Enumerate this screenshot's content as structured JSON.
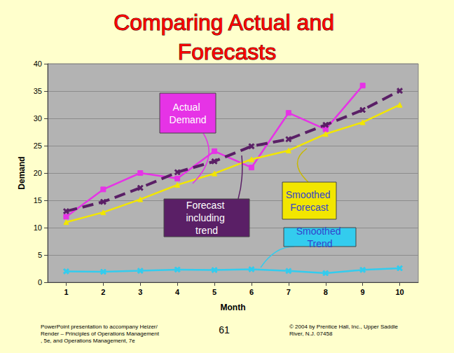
{
  "chart_data": {
    "type": "line",
    "title": "Comparing Actual and Forecasts",
    "x_label": "Month",
    "y_label": "Demand",
    "categories": [
      "1",
      "2",
      "3",
      "4",
      "5",
      "6",
      "7",
      "8",
      "9",
      "10"
    ],
    "series": [
      {
        "name": "Actual Demand",
        "color": "#e633e6",
        "marker": "square",
        "line_style": "solid",
        "values": [
          12,
          17,
          20,
          19,
          24,
          21,
          31,
          28,
          36,
          null
        ]
      },
      {
        "name": "Forecast including trend",
        "color": "#5a1f66",
        "marker": "x",
        "line_style": "dashed",
        "values": [
          13.0,
          14.72,
          17.28,
          20.14,
          22.14,
          24.89,
          26.18,
          28.81,
          31.54,
          35.05
        ]
      },
      {
        "name": "Smoothed Forecast",
        "color": "#f2e600",
        "marker": "triangle",
        "line_style": "solid",
        "values": [
          11.0,
          12.8,
          15.18,
          17.82,
          19.91,
          22.51,
          24.11,
          27.14,
          29.28,
          32.48
        ]
      },
      {
        "name": "Smoothed Trend",
        "color": "#33ccee",
        "marker": "x",
        "line_style": "solid",
        "values": [
          2.0,
          1.92,
          2.1,
          2.32,
          2.23,
          2.38,
          2.07,
          1.67,
          2.26,
          2.57
        ]
      }
    ],
    "ylim": [
      0,
      40
    ],
    "yticks": [
      0,
      5,
      10,
      15,
      20,
      25,
      30,
      35,
      40
    ],
    "grid": true,
    "footer": [
      "PowerPoint presentation to accompany Heizer/Render – Principles of Operations Management, 5e, and Operations Management, 7e",
      "61",
      "© 2004 by Prentice Hall, Inc., Upper Saddle River, N.J. 07458"
    ]
  }
}
